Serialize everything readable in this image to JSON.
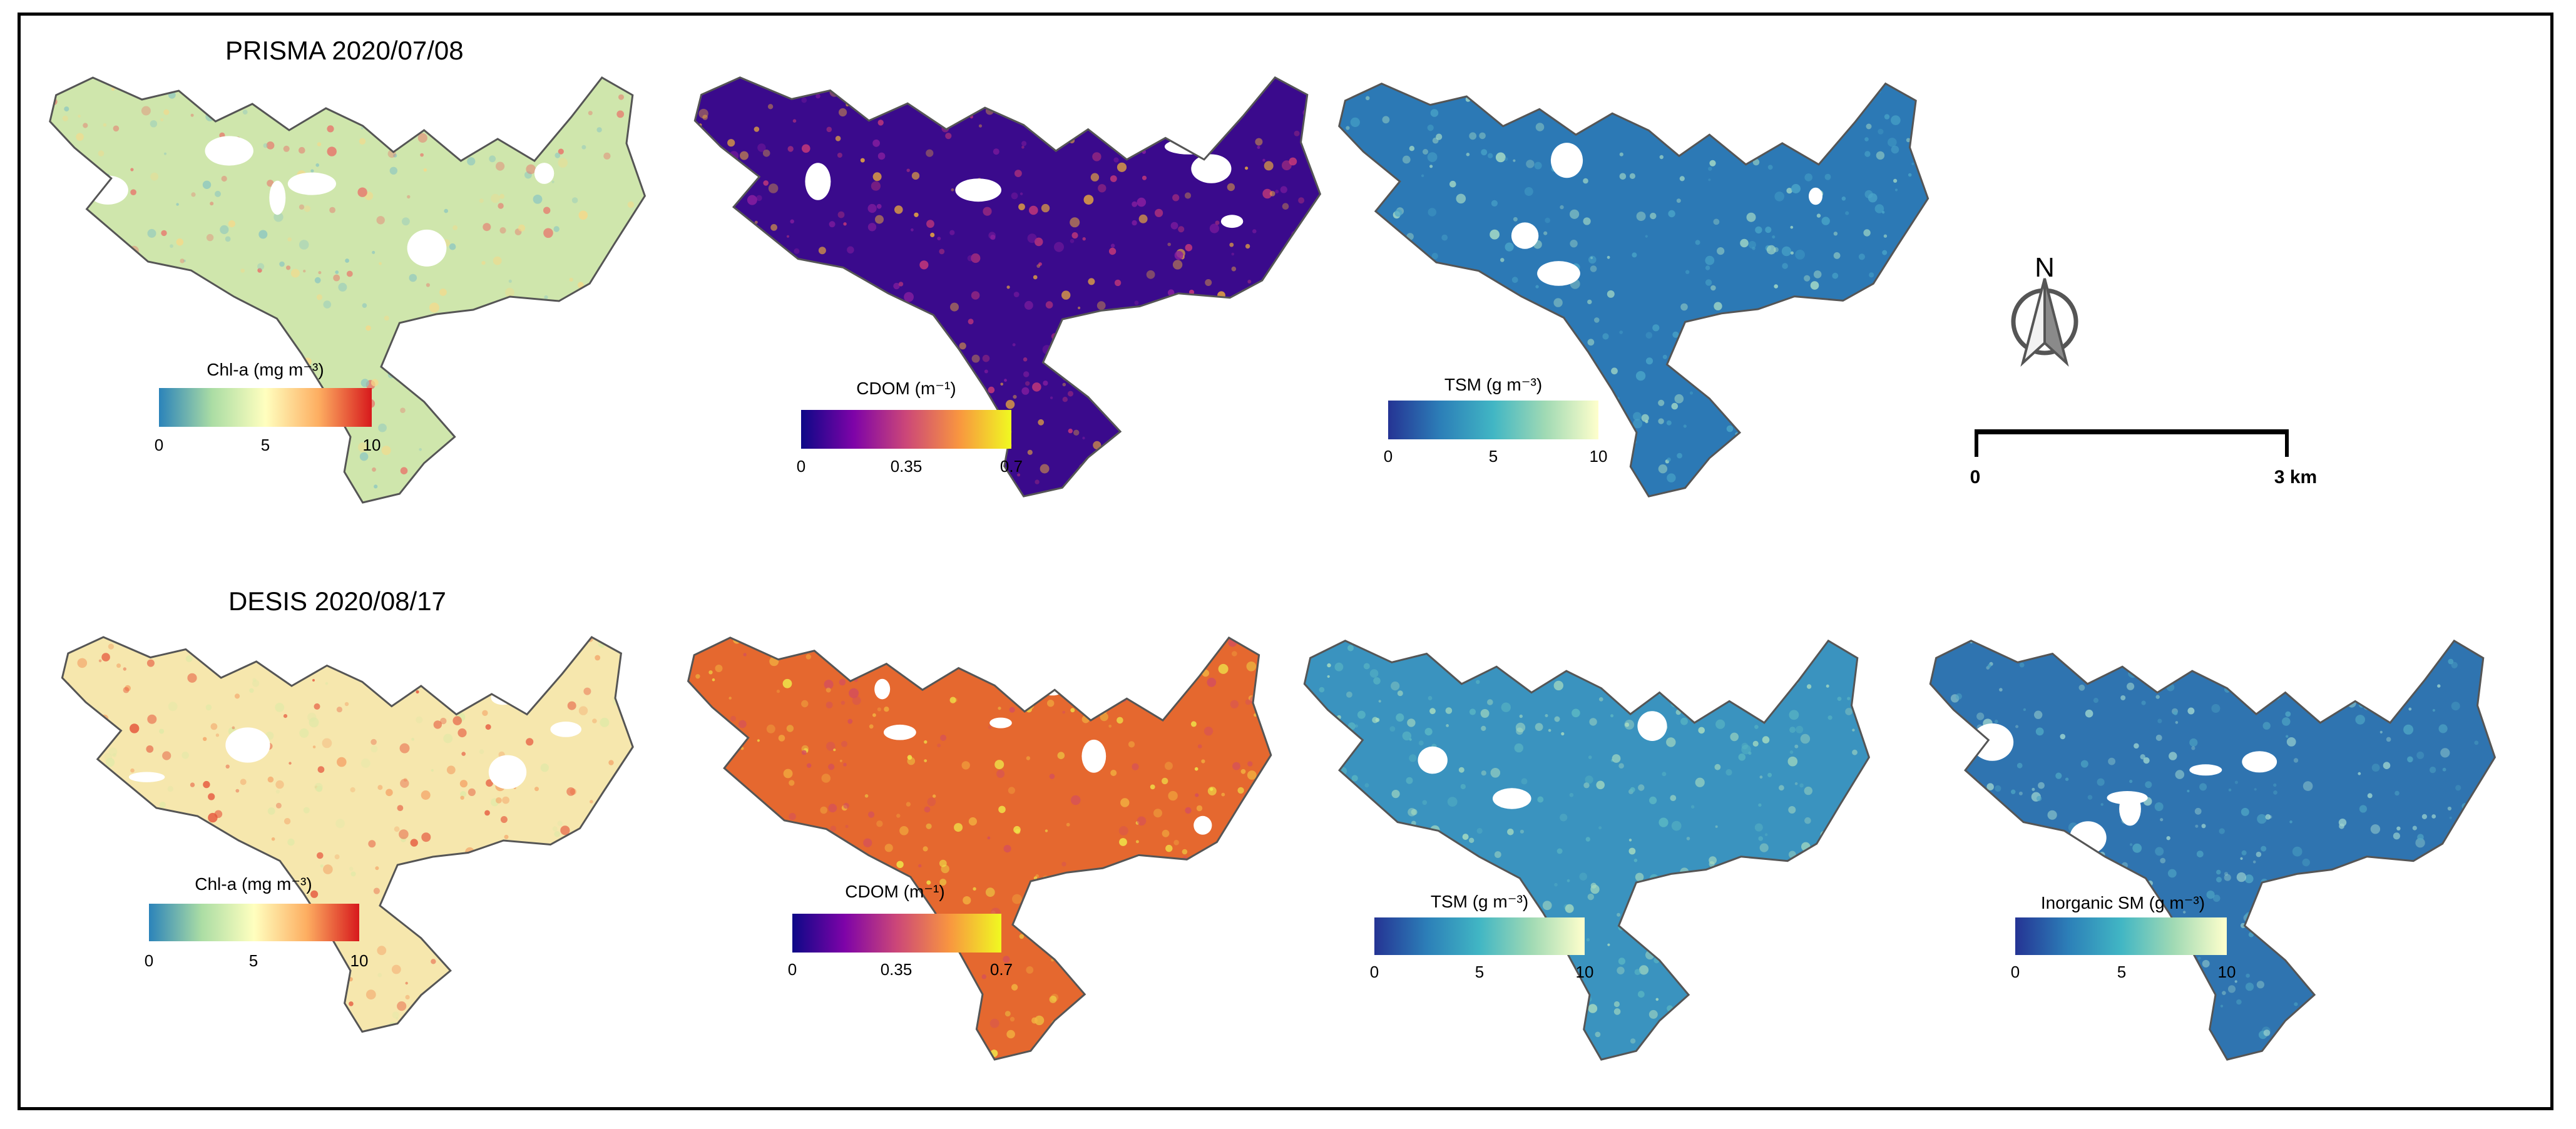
{
  "rows": [
    {
      "title": "PRISMA 2020/07/08"
    },
    {
      "title": "DESIS 2020/08/17"
    }
  ],
  "colorbars": {
    "chla": {
      "title": "Chl-a (mg m⁻³)",
      "ticks": [
        "0",
        "5",
        "10"
      ],
      "colors": [
        "#2b83ba",
        "#abdda4",
        "#ffffbf",
        "#fdae61",
        "#d7191c"
      ]
    },
    "cdom": {
      "title": "CDOM (m⁻¹)",
      "ticks": [
        "0",
        "0.35",
        "0.7"
      ],
      "colors": [
        "#0d0887",
        "#7e03a8",
        "#cc4778",
        "#f89540",
        "#f0f921"
      ]
    },
    "tsm": {
      "title": "TSM (g m⁻³)",
      "ticks": [
        "0",
        "5",
        "10"
      ],
      "colors": [
        "#253494",
        "#2c7fb8",
        "#41b6c4",
        "#a1dab4",
        "#ffffcc"
      ]
    },
    "ism": {
      "title": "Inorganic SM (g m⁻³)",
      "ticks": [
        "0",
        "5",
        "10"
      ],
      "colors": [
        "#253494",
        "#2c7fb8",
        "#41b6c4",
        "#a1dab4",
        "#ffffcc"
      ]
    }
  },
  "maps": {
    "prisma_chla": {
      "fill": "#cfe6ac",
      "speckle": [
        "#e8736a",
        "#8fc8c0",
        "#f5d98a"
      ]
    },
    "prisma_cdom": {
      "fill": "#3a0a8c",
      "speckle": [
        "#8a1fa0",
        "#f3b13a",
        "#c93a78"
      ]
    },
    "prisma_tsm": {
      "fill": "#2c79b5",
      "speckle": [
        "#49a4c8",
        "#a7dcc6"
      ]
    },
    "desis_chla": {
      "fill": "#f6e7ad",
      "speckle": [
        "#e5553b",
        "#f4a76b",
        "#dfe9a7"
      ]
    },
    "desis_cdom": {
      "fill": "#e5682f",
      "speckle": [
        "#f3b541",
        "#d44e5e",
        "#f0e84a"
      ]
    },
    "desis_tsm": {
      "fill": "#3a93bf",
      "speckle": [
        "#5cb8c4",
        "#a8dcc0"
      ]
    },
    "desis_ism": {
      "fill": "#2f74b0",
      "speckle": [
        "#4ea5c4",
        "#9cd4cf"
      ]
    }
  },
  "north_arrow": {
    "label": "N"
  },
  "scale_bar": {
    "start": "0",
    "end": "3 km"
  }
}
